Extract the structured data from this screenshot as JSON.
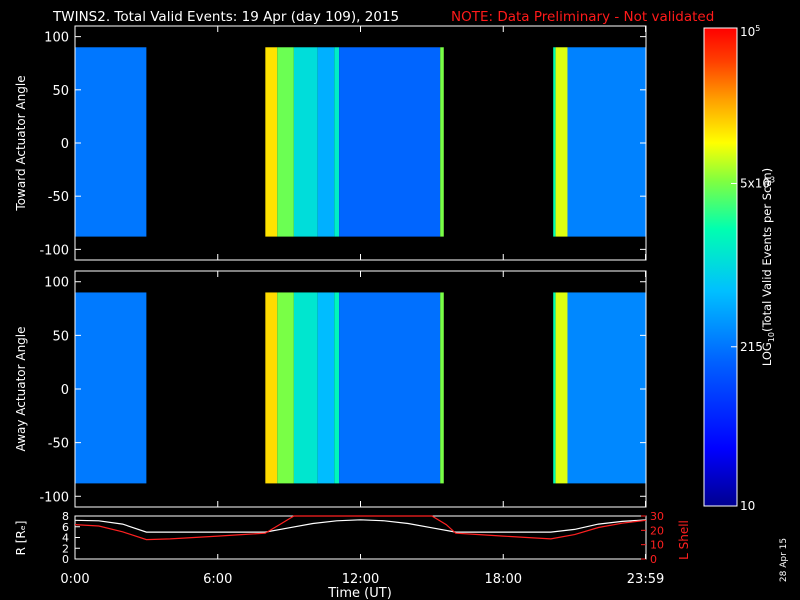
{
  "header": {
    "title": "TWINS2. Total Valid Events: 19 Apr (day 109), 2015",
    "note": "NOTE: Data Preliminary - Not validated",
    "note_color": "#ff1a1a"
  },
  "footer": {
    "date_stamp": "28 Apr 15"
  },
  "chart_data": [
    {
      "type": "heatmap",
      "ylabel": "Toward Actuator Angle",
      "ylim": [
        -110,
        110
      ],
      "yticks": [
        "100",
        "50",
        "0",
        "-50",
        "-100"
      ],
      "ytick_values": [
        100,
        50,
        0,
        -50,
        -100
      ],
      "data_angle_range": [
        -88,
        90
      ],
      "xlim_hours": [
        0,
        24
      ],
      "data_intervals_hours": [
        [
          0,
          3
        ],
        [
          8,
          15.5
        ],
        [
          20.1,
          24
        ]
      ],
      "color_scale": "log10",
      "color_range": [
        10,
        100000
      ],
      "band_structure_hours": [
        {
          "from": 0,
          "to": 3,
          "level": 220
        },
        {
          "from": 8,
          "to": 8.5,
          "level": 14000
        },
        {
          "from": 8.5,
          "to": 9.2,
          "level": 4500
        },
        {
          "from": 9.2,
          "to": 10.2,
          "level": 1100
        },
        {
          "from": 10.2,
          "to": 10.9,
          "level": 500
        },
        {
          "from": 10.9,
          "to": 11.1,
          "level": 1500
        },
        {
          "from": 11.1,
          "to": 15.35,
          "level": 170
        },
        {
          "from": 15.35,
          "to": 15.5,
          "level": 5000
        },
        {
          "from": 20.1,
          "to": 20.2,
          "level": 2000
        },
        {
          "from": 20.2,
          "to": 20.7,
          "level": 9000
        },
        {
          "from": 20.7,
          "to": 24,
          "level": 260
        }
      ]
    },
    {
      "type": "heatmap",
      "ylabel": "Away Actuator Angle",
      "ylim": [
        -110,
        110
      ],
      "yticks": [
        "100",
        "50",
        "0",
        "-50",
        "-100"
      ],
      "ytick_values": [
        100,
        50,
        0,
        -50,
        -100
      ],
      "data_angle_range": [
        -88,
        90
      ],
      "xlim_hours": [
        0,
        24
      ],
      "data_intervals_hours": [
        [
          0,
          3
        ],
        [
          8,
          15.5
        ],
        [
          20.1,
          24
        ]
      ],
      "color_scale": "log10",
      "color_range": [
        10,
        100000
      ],
      "band_structure_hours": [
        {
          "from": 0,
          "to": 3,
          "level": 230
        },
        {
          "from": 8,
          "to": 8.5,
          "level": 15000
        },
        {
          "from": 8.5,
          "to": 9.2,
          "level": 5000
        },
        {
          "from": 9.2,
          "to": 10.2,
          "level": 1300
        },
        {
          "from": 10.2,
          "to": 10.9,
          "level": 600
        },
        {
          "from": 10.9,
          "to": 11.1,
          "level": 1800
        },
        {
          "from": 11.1,
          "to": 15.35,
          "level": 200
        },
        {
          "from": 15.35,
          "to": 15.5,
          "level": 5000
        },
        {
          "from": 20.1,
          "to": 20.2,
          "level": 2000
        },
        {
          "from": 20.2,
          "to": 20.7,
          "level": 9000
        },
        {
          "from": 20.7,
          "to": 24,
          "level": 280
        }
      ]
    },
    {
      "type": "line",
      "xlabel": "Time (UT)",
      "xticks": [
        "0:00",
        "6:00",
        "12:00",
        "18:00",
        "23:59"
      ],
      "xtick_hours": [
        0,
        6,
        12,
        18,
        23.98
      ],
      "left_axis": {
        "label": "R [Rₑ]",
        "yticks": [
          "8",
          "6",
          "4",
          "2",
          "0"
        ],
        "ylim": [
          0,
          8
        ]
      },
      "right_axis": {
        "label": "L Shell",
        "yticks": [
          "30",
          "20",
          "10",
          "0"
        ],
        "ylim": [
          0,
          30
        ],
        "color": "#ff2020"
      },
      "series": [
        {
          "color": "#ffffff",
          "axis": "left",
          "x": [
            0,
            1,
            2,
            3,
            4,
            5,
            6,
            7,
            8,
            9,
            10,
            11,
            12,
            13,
            14,
            15,
            16,
            17,
            18,
            19,
            20,
            21,
            22,
            23,
            24
          ],
          "y": [
            7.2,
            7.1,
            6.5,
            5.0,
            5.0,
            5.0,
            5.0,
            5.0,
            5.0,
            5.8,
            6.6,
            7.1,
            7.3,
            7.1,
            6.6,
            5.8,
            5.0,
            5.0,
            5.0,
            5.0,
            5.0,
            5.5,
            6.5,
            7.0,
            7.3
          ]
        },
        {
          "color": "#ff2020",
          "axis": "right",
          "x": [
            0,
            1,
            2,
            3,
            4,
            5,
            6,
            7,
            8,
            8.6,
            9.2,
            15.0,
            15.6,
            16,
            17,
            18,
            19,
            20,
            21,
            22,
            23,
            24
          ],
          "y": [
            24,
            23,
            19,
            13.5,
            14,
            15,
            16,
            17,
            18,
            24,
            30,
            30,
            24,
            18,
            17,
            16,
            15,
            14,
            17,
            22,
            25,
            27
          ]
        }
      ]
    }
  ],
  "colorbar": {
    "label": "LOG",
    "label_sub": "10",
    "label_rest": "(Total Valid Events per Scan)",
    "ticks": [
      {
        "value": 100000,
        "text": "10",
        "sup": "5"
      },
      {
        "value": 5000,
        "text": "5x10",
        "sup": "3"
      },
      {
        "value": 215,
        "text": "215",
        "sup": ""
      },
      {
        "value": 10,
        "text": "10",
        "sup": ""
      }
    ],
    "range": [
      10,
      100000
    ],
    "stops": [
      "#000090",
      "#0000ff",
      "#0060ff",
      "#00c0ff",
      "#00ffb0",
      "#80ff40",
      "#ffff00",
      "#ffa000",
      "#ff4000",
      "#ff0000"
    ]
  }
}
